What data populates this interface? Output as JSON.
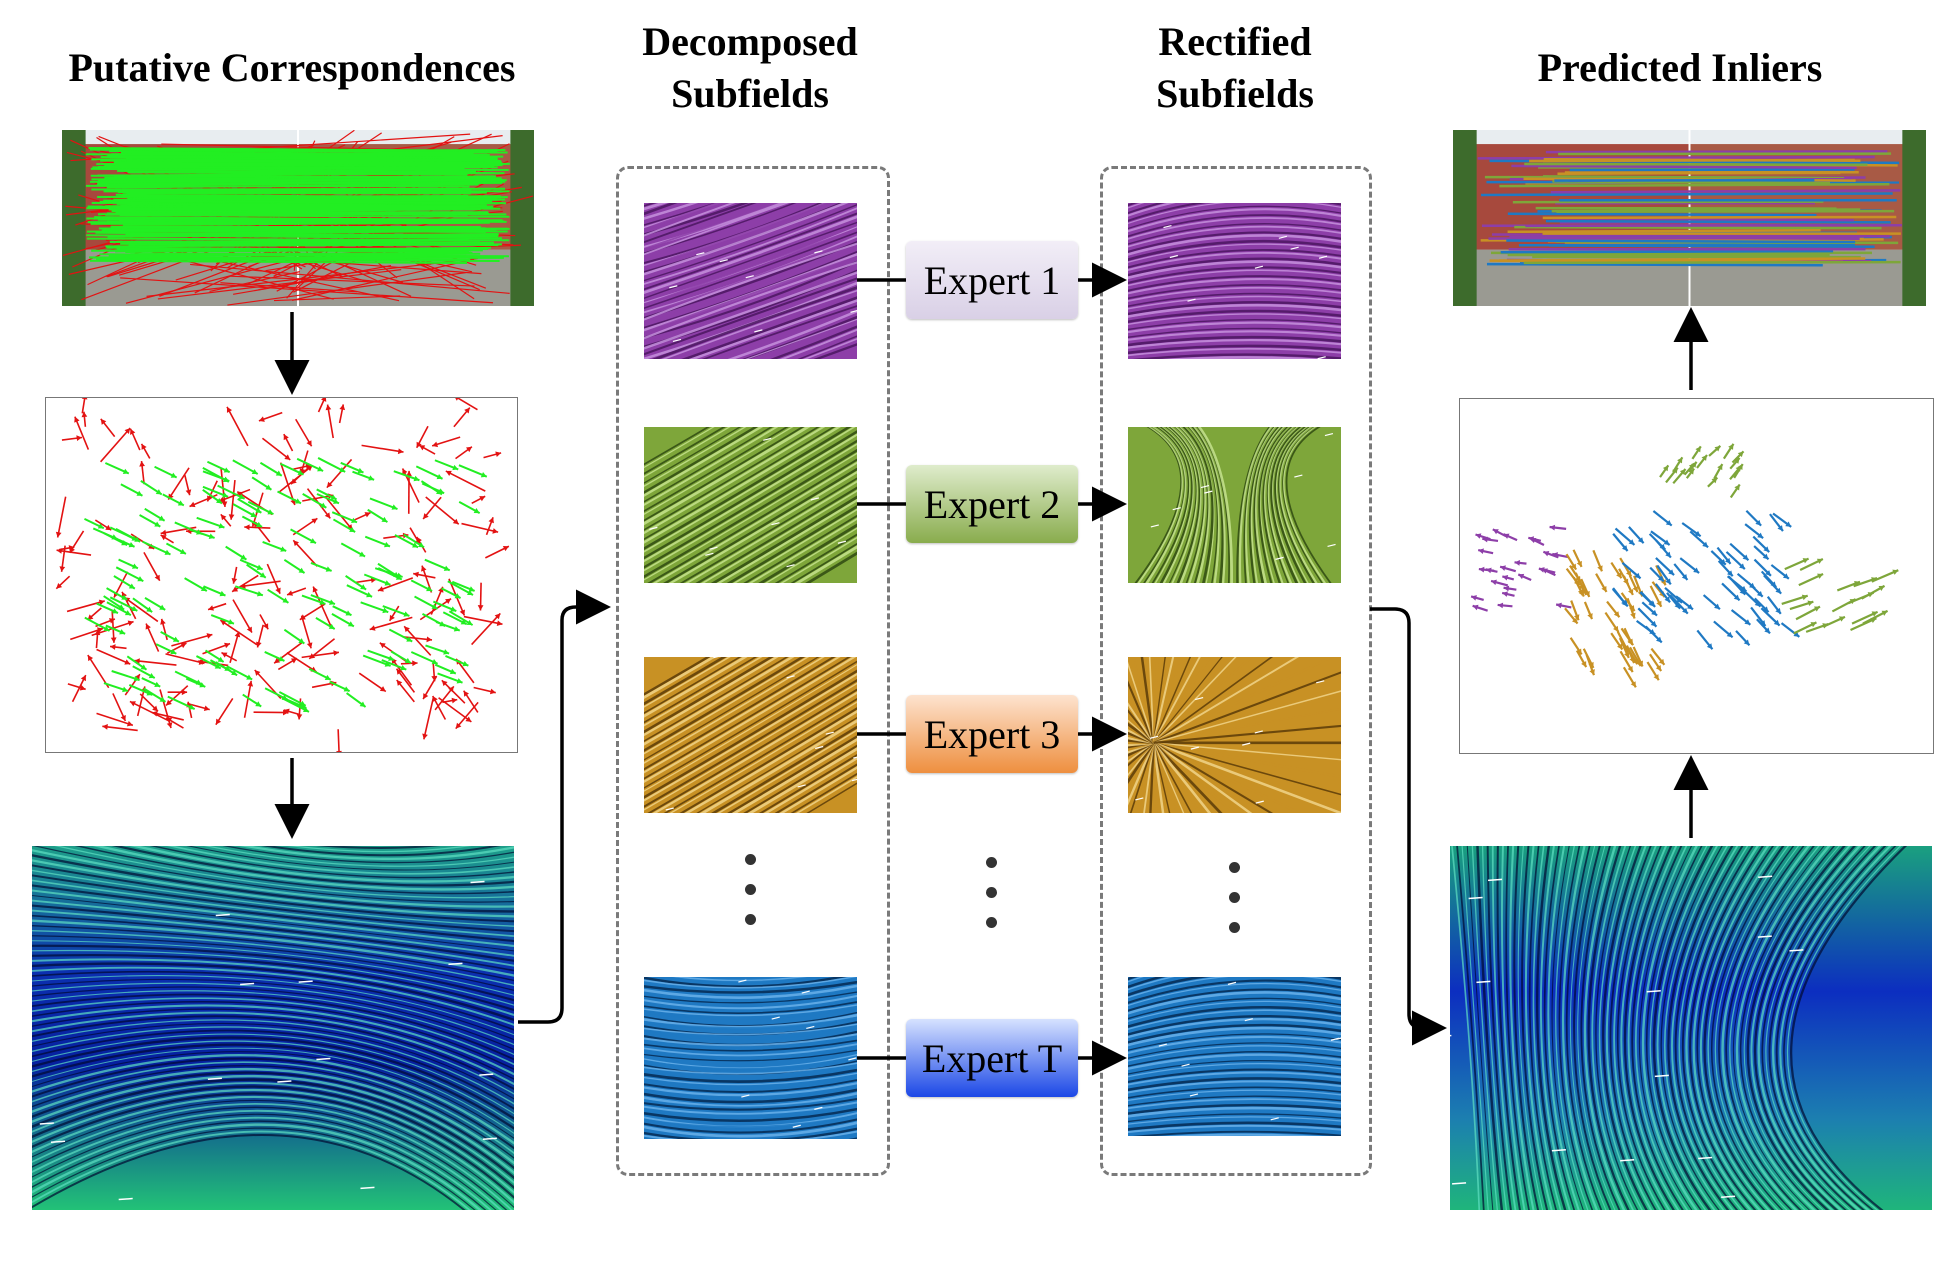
{
  "titles": {
    "putative": "Putative Correspondences",
    "decomposed_1": "Decomposed",
    "decomposed_2": "Subfields",
    "rectified_1": "Rectified",
    "rectified_2": "Subfields",
    "predicted": "Predicted Inliers"
  },
  "experts": [
    {
      "label": "Expert 1",
      "color_top": "#f2eef7",
      "color_bottom": "#d9d0e6"
    },
    {
      "label": "Expert 2",
      "color_top": "#dfeccc",
      "color_bottom": "#89ac4d"
    },
    {
      "label": "Expert 3",
      "color_top": "#fde3cf",
      "color_bottom": "#ee8f3f"
    },
    {
      "label": "Expert T",
      "color_top": "#d6e2ff",
      "color_bottom": "#1b47e6"
    }
  ],
  "colors": {
    "inlier_green": "#22ee22",
    "outlier_red": "#e31212",
    "purple": "#8d3ea8",
    "olive": "#7ea63a",
    "ochre": "#c89124",
    "blue": "#1f79c3",
    "field_blue": "#0a2fb0",
    "field_green": "#1fb37a",
    "dash": "#7a7a7a"
  },
  "icons": {
    "arrow": "arrow-icon",
    "ellipsis": "vertical-ellipsis-icon"
  }
}
